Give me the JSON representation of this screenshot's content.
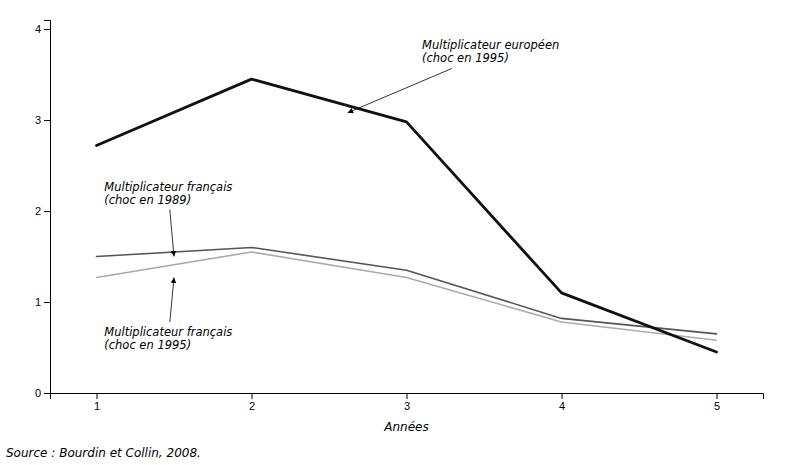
{
  "chart_data": {
    "type": "line",
    "x": [
      1,
      2,
      3,
      4,
      5
    ],
    "series": [
      {
        "color": "#111111",
        "values": [
          2.72,
          3.45,
          2.98,
          1.1,
          0.45
        ]
      },
      {
        "color": "#555555",
        "values": [
          1.5,
          1.6,
          1.35,
          0.82,
          0.65
        ]
      },
      {
        "color": "#aaaaaa",
        "values": [
          1.27,
          1.55,
          1.27,
          0.78,
          0.58
        ]
      }
    ],
    "xlabel": "Années",
    "xlim": [
      0.7,
      5.3
    ],
    "ylim": [
      0,
      4.1
    ],
    "xticks": [
      1,
      2,
      3,
      4,
      5
    ],
    "yticks": [
      0,
      1,
      2,
      3,
      4
    ],
    "grid": false,
    "source": "Source : Bourdin et Collin, 2008.",
    "annotations": [
      {
        "text": "Multiplicateur européen\n(choc en 1995)",
        "xy": [
          2.62,
          3.08
        ],
        "xytext": [
          3.1,
          3.6
        ]
      },
      {
        "text": "Multiplicateur français\n(choc en 1989)",
        "xy": [
          1.5,
          1.5
        ],
        "xytext": [
          1.05,
          2.05
        ]
      },
      {
        "text": "Multiplicateur français\n(choc en 1995)",
        "xy": [
          1.5,
          1.27
        ],
        "xytext": [
          1.05,
          0.45
        ]
      }
    ]
  }
}
